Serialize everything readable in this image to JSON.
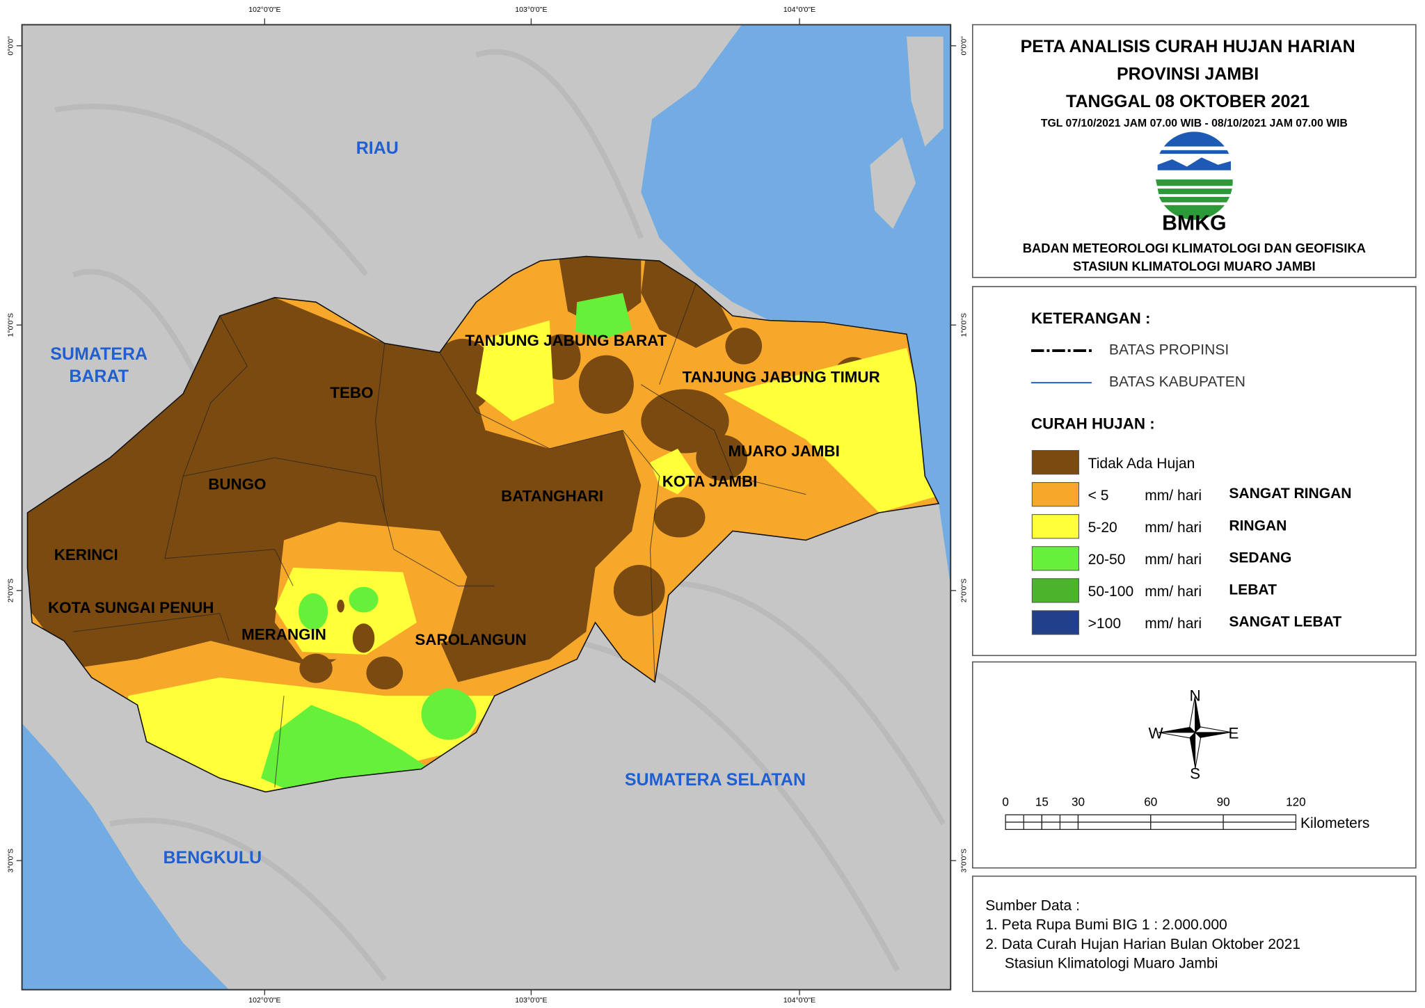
{
  "map": {
    "graticule": {
      "x_labels": [
        "102°0'0\"E",
        "103°0'0\"E",
        "104°0'0\"E"
      ],
      "y_labels": [
        "0°0'0\"",
        "1°0'0\"S",
        "2°0'0\"S",
        "3°0'0\"S"
      ]
    },
    "province_labels": [
      {
        "lines": [
          "RIAU"
        ]
      },
      {
        "lines": [
          "SUMATERA",
          "BARAT"
        ]
      },
      {
        "lines": [
          "SUMATERA SELATAN"
        ]
      },
      {
        "lines": [
          "BENGKULU"
        ]
      }
    ],
    "district_labels": [
      "TEBO",
      "TANJUNG JABUNG BARAT",
      "TANJUNG JABUNG TIMUR",
      "BUNGO",
      "BATANGHARI",
      "MUARO JAMBI",
      "KOTA JAMBI",
      "KERINCI",
      "KOTA SUNGAI PENUH",
      "MERANGIN",
      "SAROLANGUN"
    ],
    "land_color": "#c6c6c6",
    "sea_color": "#72ace2",
    "province_label_color": "#1f5fcf"
  },
  "header": {
    "title_lines": [
      "PETA ANALISIS CURAH HUJAN HARIAN",
      "PROVINSI JAMBI",
      "TANGGAL 08 OKTOBER 2021"
    ],
    "subtitle": "TGL 07/10/2021 JAM 07.00 WIB - 08/10/2021 JAM 07.00 WIB",
    "logo_text": "BMKG",
    "org_lines": [
      "BADAN METEOROLOGI KLIMATOLOGI DAN GEOFISIKA",
      "STASIUN KLIMATOLOGI MUARO JAMBI"
    ]
  },
  "legend": {
    "title": "KETERANGAN :",
    "boundaries": [
      {
        "label": "BATAS PROPINSI",
        "color": "#000000"
      },
      {
        "label": "BATAS KABUPATEN",
        "color": "#1f5fcf"
      }
    ],
    "rain_title": "CURAH HUJAN :",
    "classes": [
      {
        "range": "Tidak Ada Hujan",
        "color": "#7a4a10"
      },
      {
        "range": "< 5",
        "unit": "mm/ hari",
        "name": "SANGAT RINGAN",
        "color": "#f7a82a"
      },
      {
        "range": "5-20",
        "unit": "mm/ hari",
        "name": "RINGAN",
        "color": "#ffff3a"
      },
      {
        "range": "20-50",
        "unit": "mm/ hari",
        "name": "SEDANG",
        "color": "#66f03a"
      },
      {
        "range": "50-100",
        "unit": "mm/ hari",
        "name": "LEBAT",
        "color": "#4cb42c"
      },
      {
        "range": ">100",
        "unit": "mm/ hari",
        "name": "SANGAT LEBAT",
        "color": "#213f8a"
      }
    ]
  },
  "compass": {
    "n": "N",
    "e": "E",
    "s": "S",
    "w": "W"
  },
  "scale": {
    "ticks": [
      0,
      15,
      30,
      60,
      90,
      120
    ],
    "unit": "Kilometers"
  },
  "source": {
    "title": "Sumber Data :",
    "lines": [
      "1. Peta Rupa Bumi BIG 1 : 2.000.000",
      "2. Data Curah Hujan Harian Bulan Oktober 2021",
      "Stasiun Klimatologi Muaro Jambi"
    ]
  }
}
